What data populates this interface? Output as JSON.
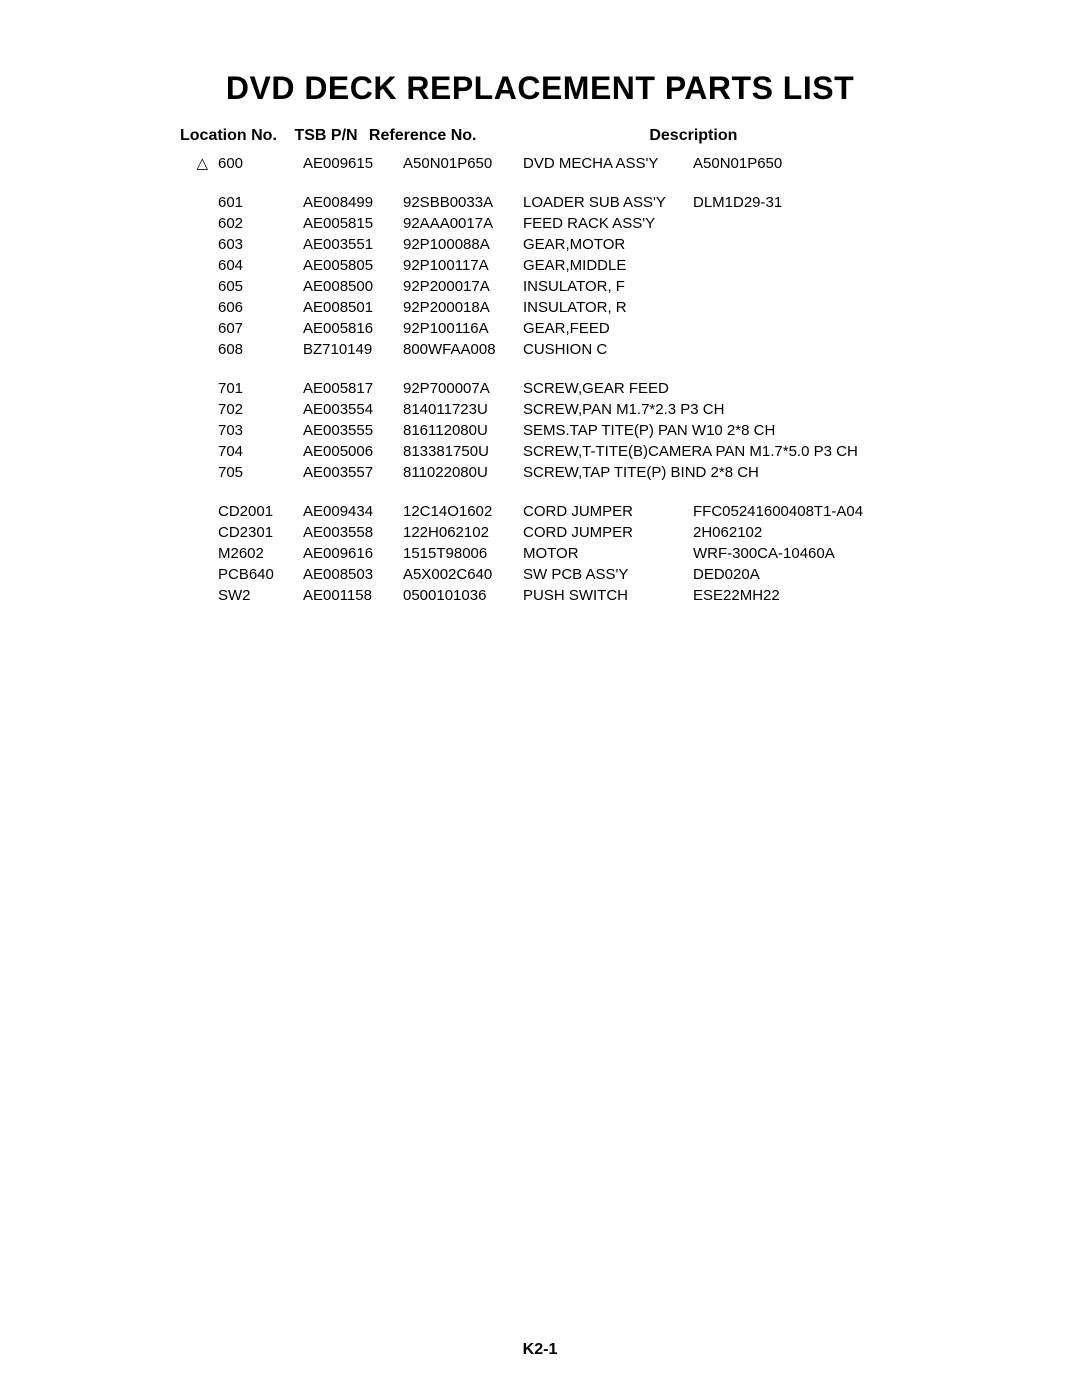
{
  "title": "DVD DECK REPLACEMENT PARTS LIST",
  "headers": {
    "location": "Location No.",
    "tsb": "TSB P/N",
    "reference": "Reference No.",
    "description": "Description"
  },
  "groups": [
    {
      "rows": [
        {
          "symbol": "△",
          "location": "600",
          "tsb": "AE009615",
          "reference": "A50N01P650",
          "desc1": "DVD MECHA ASS'Y",
          "desc2": "A50N01P650"
        }
      ]
    },
    {
      "rows": [
        {
          "symbol": "",
          "location": "601",
          "tsb": "AE008499",
          "reference": "92SBB0033A",
          "desc1": "LOADER SUB ASS'Y",
          "desc2": "DLM1D29-31"
        },
        {
          "symbol": "",
          "location": "602",
          "tsb": "AE005815",
          "reference": "92AAA0017A",
          "desc1": "FEED RACK ASS'Y",
          "desc2": ""
        },
        {
          "symbol": "",
          "location": "603",
          "tsb": "AE003551",
          "reference": "92P100088A",
          "desc1": "GEAR,MOTOR",
          "desc2": ""
        },
        {
          "symbol": "",
          "location": "604",
          "tsb": "AE005805",
          "reference": "92P100117A",
          "desc1": "GEAR,MIDDLE",
          "desc2": ""
        },
        {
          "symbol": "",
          "location": "605",
          "tsb": "AE008500",
          "reference": "92P200017A",
          "desc1": "INSULATOR, F",
          "desc2": ""
        },
        {
          "symbol": "",
          "location": "606",
          "tsb": "AE008501",
          "reference": "92P200018A",
          "desc1": "INSULATOR, R",
          "desc2": ""
        },
        {
          "symbol": "",
          "location": "607",
          "tsb": "AE005816",
          "reference": "92P100116A",
          "desc1": "GEAR,FEED",
          "desc2": ""
        },
        {
          "symbol": "",
          "location": "608",
          "tsb": "BZ710149",
          "reference": "800WFAA008",
          "desc1": "CUSHION C",
          "desc2": ""
        }
      ]
    },
    {
      "rows": [
        {
          "symbol": "",
          "location": "701",
          "tsb": "AE005817",
          "reference": "92P700007A",
          "desc1": "SCREW,GEAR FEED",
          "desc2": ""
        },
        {
          "symbol": "",
          "location": "702",
          "tsb": "AE003554",
          "reference": "814011723U",
          "desc1": "SCREW,PAN M1.7*2.3 P3 CH",
          "desc2": ""
        },
        {
          "symbol": "",
          "location": "703",
          "tsb": "AE003555",
          "reference": "816112080U",
          "desc1": "SEMS.TAP TITE(P) PAN W10 2*8 CH",
          "desc2": ""
        },
        {
          "symbol": "",
          "location": "704",
          "tsb": "AE005006",
          "reference": "813381750U",
          "desc1": "SCREW,T-TITE(B)CAMERA PAN M1.7*5.0 P3 CH",
          "desc2": ""
        },
        {
          "symbol": "",
          "location": "705",
          "tsb": "AE003557",
          "reference": "811022080U",
          "desc1": "SCREW,TAP TITE(P) BIND 2*8 CH",
          "desc2": ""
        }
      ]
    },
    {
      "rows": [
        {
          "symbol": "",
          "location": "CD2001",
          "tsb": "AE009434",
          "reference": "12C14O1602",
          "desc1": "CORD JUMPER",
          "desc2": "FFC05241600408T1-A04"
        },
        {
          "symbol": "",
          "location": "CD2301",
          "tsb": "AE003558",
          "reference": "122H062102",
          "desc1": "CORD JUMPER",
          "desc2": "2H062102"
        },
        {
          "symbol": "",
          "location": "M2602",
          "tsb": "AE009616",
          "reference": "1515T98006",
          "desc1": "MOTOR",
          "desc2": "WRF-300CA-10460A"
        },
        {
          "symbol": "",
          "location": "PCB640",
          "tsb": "AE008503",
          "reference": "A5X002C640",
          "desc1": "SW PCB ASS'Y",
          "desc2": "DED020A"
        },
        {
          "symbol": "",
          "location": "SW2",
          "tsb": "AE001158",
          "reference": "0500101036",
          "desc1": "PUSH SWITCH",
          "desc2": "ESE22MH22"
        }
      ]
    }
  ],
  "page_footer": "K2-1"
}
